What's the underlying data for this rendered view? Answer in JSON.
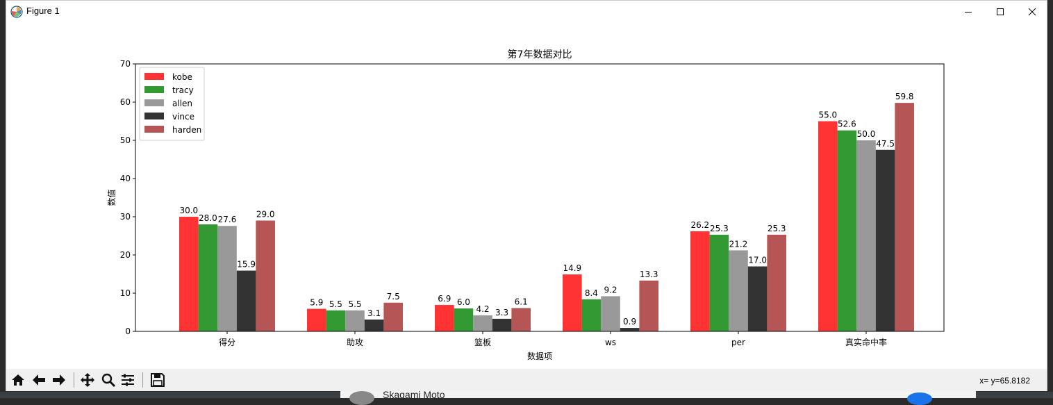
{
  "background": {
    "behind_name": "Skagami Moto"
  },
  "window": {
    "title": "Figure 1"
  },
  "toolbar": {
    "coords_text": "x= y=65.8182",
    "buttons": [
      "home-icon",
      "back-arrow-icon",
      "forward-arrow-icon",
      "pan-icon",
      "zoom-icon",
      "configure-subplots-icon",
      "save-icon"
    ]
  },
  "chart_data": {
    "type": "bar",
    "title": "第7年数据对比",
    "xlabel": "数据项",
    "ylabel": "数值",
    "ylim": [
      0,
      70
    ],
    "yticks": [
      0,
      10,
      20,
      30,
      40,
      50,
      60,
      70
    ],
    "categories": [
      "得分",
      "助攻",
      "篮板",
      "ws",
      "per",
      "真实命中率"
    ],
    "legend_position": "upper-left",
    "grid": false,
    "series": [
      {
        "name": "kobe",
        "color": "#ff3333",
        "values": [
          30.0,
          5.9,
          6.9,
          14.9,
          26.2,
          55.0
        ],
        "labels": [
          "30.0",
          "5.9",
          "6.9",
          "14.9",
          "26.2",
          "55.0"
        ]
      },
      {
        "name": "tracy",
        "color": "#339933",
        "values": [
          28.0,
          5.5,
          6.0,
          8.4,
          25.3,
          52.6
        ],
        "labels": [
          "28.0",
          "5.5",
          "6.0",
          "8.4",
          "25.3",
          "52.6"
        ]
      },
      {
        "name": "allen",
        "color": "#999999",
        "values": [
          27.6,
          5.5,
          4.2,
          9.2,
          21.2,
          50.0
        ],
        "labels": [
          "27.6",
          "5.5",
          "4.2",
          "9.2",
          "21.2",
          "50.0"
        ]
      },
      {
        "name": "vince",
        "color": "#333333",
        "values": [
          15.9,
          3.1,
          3.3,
          0.9,
          17.0,
          47.5
        ],
        "labels": [
          "15.9",
          "3.1",
          "3.3",
          "0.9",
          "17.0",
          "47.5"
        ]
      },
      {
        "name": "harden",
        "color": "#b55555",
        "values": [
          29.0,
          7.5,
          6.1,
          13.3,
          25.3,
          59.8
        ],
        "labels": [
          "29.0",
          "7.5",
          "6.1",
          "13.3",
          "25.3",
          "59.8"
        ]
      }
    ]
  }
}
